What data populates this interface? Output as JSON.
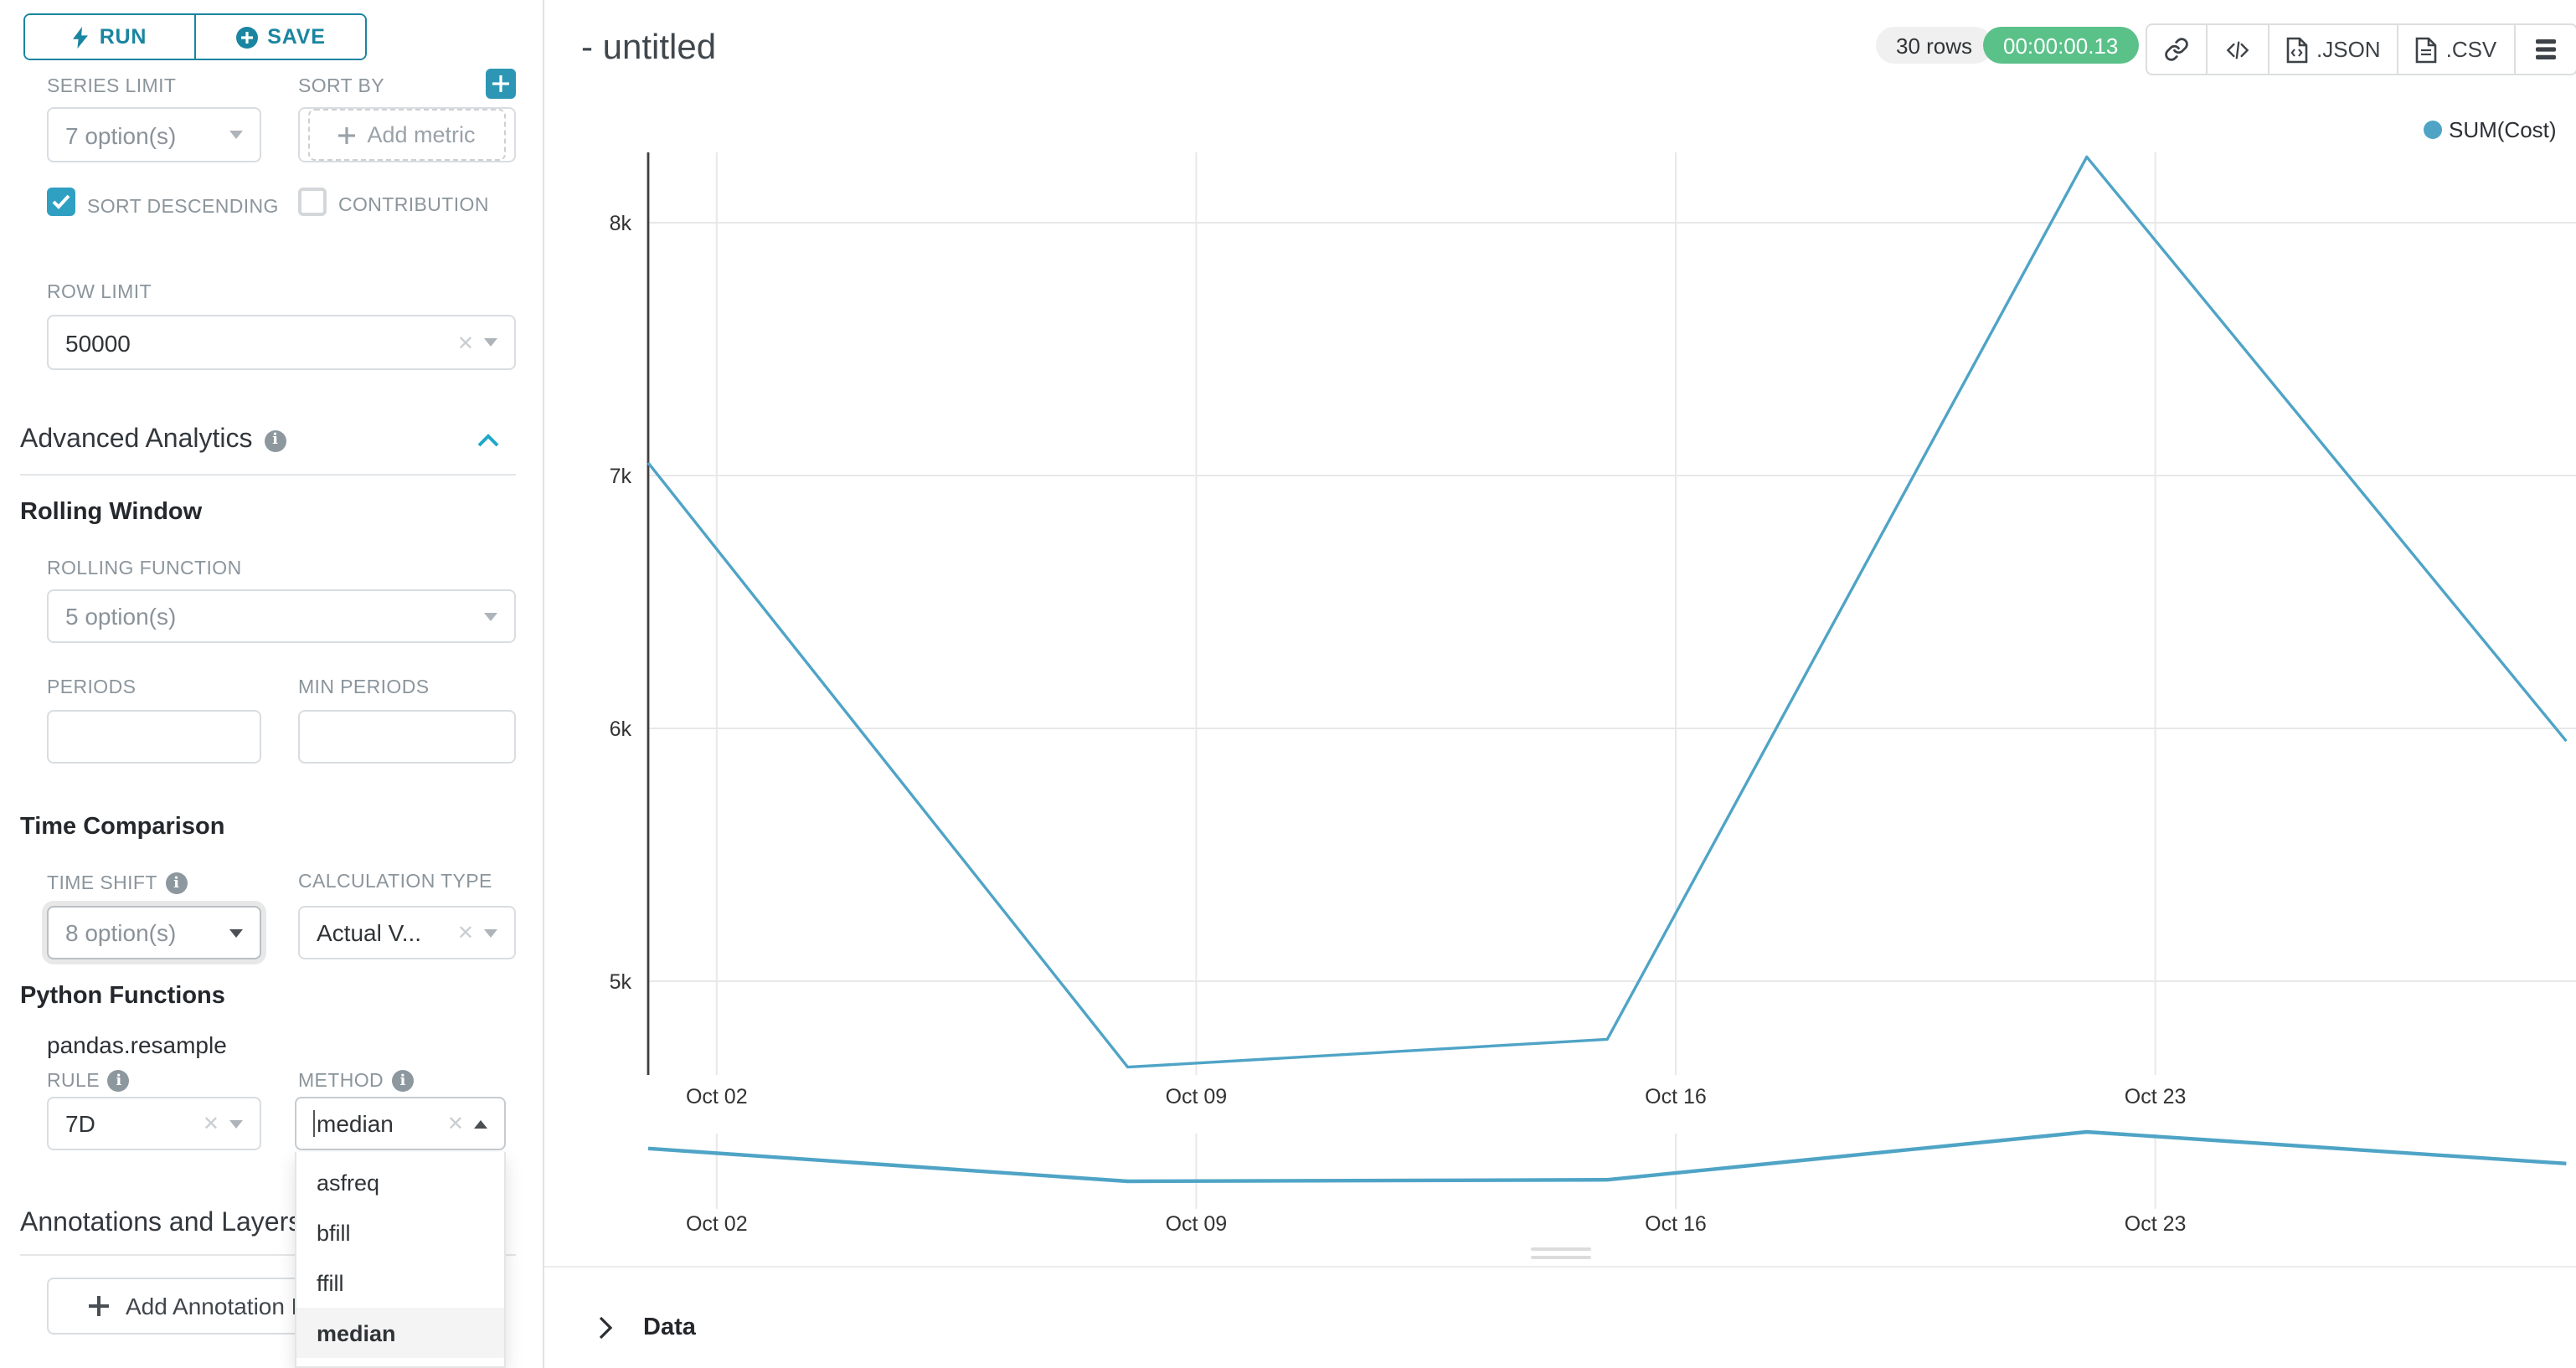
{
  "toolbar": {
    "run_label": "RUN",
    "save_label": "SAVE"
  },
  "controls": {
    "series_limit": {
      "label": "SERIES LIMIT",
      "value": "7 option(s)"
    },
    "sort_by": {
      "label": "SORT BY",
      "placeholder": "Add metric"
    },
    "sort_descending": {
      "label": "SORT DESCENDING",
      "checked": true
    },
    "contribution": {
      "label": "CONTRIBUTION",
      "checked": false
    },
    "row_limit": {
      "label": "ROW LIMIT",
      "value": "50000"
    },
    "advanced_analytics_title": "Advanced Analytics",
    "rolling_window_title": "Rolling Window",
    "rolling_function": {
      "label": "ROLLING FUNCTION",
      "value": "5 option(s)"
    },
    "periods": {
      "label": "PERIODS",
      "value": ""
    },
    "min_periods": {
      "label": "MIN PERIODS",
      "value": ""
    },
    "time_comparison_title": "Time Comparison",
    "time_shift": {
      "label": "TIME SHIFT",
      "value": "8 option(s)"
    },
    "calculation_type": {
      "label": "CALCULATION TYPE",
      "value": "Actual V..."
    },
    "python_functions_title": "Python Functions",
    "python_function_name": "pandas.resample",
    "rule": {
      "label": "RULE",
      "value": "7D"
    },
    "method": {
      "label": "METHOD",
      "value": "median",
      "options": [
        "asfreq",
        "bfill",
        "ffill",
        "median"
      ],
      "selected_option": "median"
    },
    "annotations_title": "Annotations and Layers",
    "add_annotation_label": "Add Annotation Layer"
  },
  "header": {
    "title": "- untitled",
    "rows_badge": "30 rows",
    "duration_badge": "00:00:00.13",
    "export_json_label": ".JSON",
    "export_csv_label": ".CSV"
  },
  "chart_data": {
    "type": "line",
    "title": "- untitled",
    "legend": [
      {
        "label": "SUM(Cost)",
        "color": "#4FA4C6"
      }
    ],
    "legend_position": "top-right",
    "grid": true,
    "series": [
      {
        "name": "SUM(Cost)",
        "points": [
          {
            "date": "Oct 01",
            "t": 0,
            "value": 7050
          },
          {
            "date": "Oct 08",
            "t": 7,
            "value": 4660
          },
          {
            "date": "Oct 15",
            "t": 14,
            "value": 4770
          },
          {
            "date": "Oct 22",
            "t": 21,
            "value": 8260
          },
          {
            "date": "Oct 29",
            "t": 28,
            "value": 5950
          }
        ]
      }
    ],
    "x_axis": {
      "ticks": [
        {
          "label": "Oct 02",
          "t": 1
        },
        {
          "label": "Oct 09",
          "t": 8
        },
        {
          "label": "Oct 16",
          "t": 15
        },
        {
          "label": "Oct 23",
          "t": 22
        }
      ]
    },
    "y_axis": {
      "ticks": [
        {
          "label": "5k",
          "value": 5000
        },
        {
          "label": "6k",
          "value": 6000
        },
        {
          "label": "7k",
          "value": 7000
        },
        {
          "label": "8k",
          "value": 8000
        }
      ],
      "range": [
        4630,
        8440
      ]
    },
    "has_minimap_preview": true
  },
  "data_panel": {
    "label": "Data"
  },
  "colors": {
    "primary": "#20A7C9",
    "primary_dark": "#1A85A0",
    "line": "#4FA4C6",
    "success_badge": "#5AC189",
    "label_gray": "#8B959C",
    "border_gray": "#D9DDE1",
    "grid_gray": "#E8E8E8",
    "axis_dark": "#3F3F3F"
  }
}
